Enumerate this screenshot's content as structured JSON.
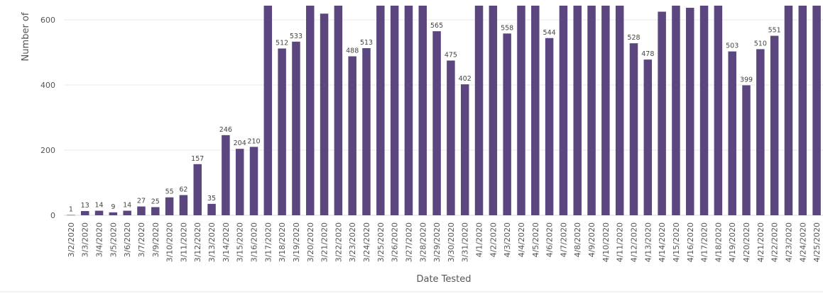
{
  "chart_data": {
    "type": "bar",
    "xlabel": "Date Tested",
    "ylabel": "Number of",
    "ylim": [
      0,
      650
    ],
    "yticks": [
      "0",
      "200",
      "400",
      "600"
    ],
    "grid": true,
    "bar_color": "#5b4680",
    "categories": [
      "3/2/2020",
      "3/3/2020",
      "3/4/2020",
      "3/5/2020",
      "3/6/2020",
      "3/7/2020",
      "3/9/2020",
      "3/10/2020",
      "3/11/2020",
      "3/12/2020",
      "3/13/2020",
      "3/14/2020",
      "3/15/2020",
      "3/16/2020",
      "3/17/2020",
      "3/18/2020",
      "3/19/2020",
      "3/20/2020",
      "3/21/2020",
      "3/22/2020",
      "3/23/2020",
      "3/24/2020",
      "3/25/2020",
      "3/26/2020",
      "3/27/2020",
      "3/28/2020",
      "3/29/2020",
      "3/30/2020",
      "3/31/2020",
      "4/1/2020",
      "4/2/2020",
      "4/3/2020",
      "4/4/2020",
      "4/5/2020",
      "4/6/2020",
      "4/7/2020",
      "4/8/2020",
      "4/9/2020",
      "4/10/2020",
      "4/11/2020",
      "4/12/2020",
      "4/13/2020",
      "4/14/2020",
      "4/15/2020",
      "4/16/2020",
      "4/17/2020",
      "4/18/2020",
      "4/19/2020",
      "4/20/2020",
      "4/21/2020",
      "4/22/2020",
      "4/23/2020",
      "4/24/2020",
      "4/25/2020"
    ],
    "values": [
      1,
      13,
      14,
      9,
      14,
      27,
      25,
      55,
      62,
      157,
      35,
      246,
      204,
      210,
      650,
      512,
      533,
      650,
      619,
      650,
      488,
      513,
      650,
      650,
      650,
      650,
      565,
      475,
      402,
      650,
      650,
      558,
      650,
      650,
      544,
      650,
      650,
      650,
      650,
      650,
      528,
      478,
      625,
      650,
      637,
      650,
      650,
      503,
      399,
      510,
      551,
      650,
      650,
      650
    ],
    "data_labels": [
      "1",
      "13",
      "14",
      "9",
      "14",
      "27",
      "25",
      "55",
      "62",
      "157",
      "35",
      "246",
      "204",
      "210",
      "",
      "512",
      "533",
      "",
      "",
      "",
      "488",
      "513",
      "",
      "",
      "",
      "",
      "565",
      "475",
      "402",
      "",
      "",
      "558",
      "",
      "",
      "544",
      "",
      "",
      "",
      "",
      "",
      "528",
      "478",
      "",
      "",
      "",
      "",
      "",
      "503",
      "399",
      "510",
      "551",
      "",
      "",
      ""
    ]
  }
}
